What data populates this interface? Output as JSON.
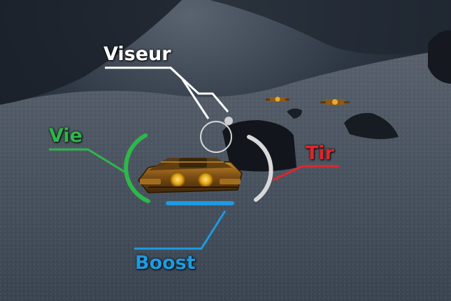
{
  "callouts": {
    "viseur": "Viseur",
    "vie": "Vie",
    "tir": "Tir",
    "boost": "Boost"
  },
  "colors": {
    "viseur": "#ffffff",
    "vie": "#2fb64a",
    "tir": "#e0262b",
    "boost": "#1d9be0",
    "tir_gauge": "#d8d8d8"
  }
}
